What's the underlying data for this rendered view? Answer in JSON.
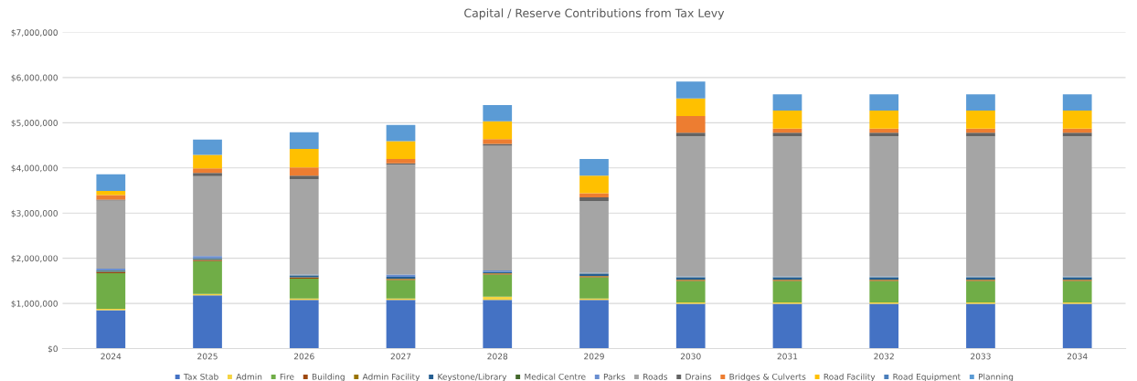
{
  "chart_data": {
    "type": "bar",
    "title": "Capital / Reserve Contributions from Tax Levy",
    "stacked": true,
    "legend": "bottom",
    "grid": "y",
    "categories": [
      "2024",
      "2025",
      "2026",
      "2027",
      "2028",
      "2029",
      "2030",
      "2031",
      "2032",
      "2033",
      "2034"
    ],
    "ylim": [
      0,
      7000000
    ],
    "yticks": [
      {
        "value": 0,
        "label": "$0"
      },
      {
        "value": 1000000,
        "label": "$1,000,000"
      },
      {
        "value": 2000000,
        "label": "$2,000,000"
      },
      {
        "value": 3000000,
        "label": "$3,000,000"
      },
      {
        "value": 4000000,
        "label": "$4,000,000"
      },
      {
        "value": 5000000,
        "label": "$5,000,000"
      },
      {
        "value": 6000000,
        "label": "$6,000,000"
      },
      {
        "value": 7000000,
        "label": "$7,000,000"
      }
    ],
    "series": [
      {
        "name": "Tax Stab",
        "color": "#4472c4",
        "values": [
          850000,
          1180000,
          1080000,
          1080000,
          1080000,
          1080000,
          990000,
          990000,
          990000,
          990000,
          990000
        ]
      },
      {
        "name": "Admin",
        "color": "#f5d442",
        "values": [
          30000,
          30000,
          30000,
          30000,
          70000,
          30000,
          30000,
          30000,
          30000,
          30000,
          30000
        ]
      },
      {
        "name": "Fire",
        "color": "#70ad47",
        "values": [
          790000,
          730000,
          440000,
          410000,
          490000,
          470000,
          480000,
          480000,
          480000,
          480000,
          480000
        ]
      },
      {
        "name": "Building",
        "color": "#9e480e",
        "values": [
          20000,
          20000,
          20000,
          20000,
          20000,
          20000,
          20000,
          20000,
          20000,
          20000,
          20000
        ]
      },
      {
        "name": "Admin Facility",
        "color": "#997300",
        "values": [
          10000,
          10000,
          10000,
          10000,
          10000,
          10000,
          10000,
          10000,
          10000,
          10000,
          10000
        ]
      },
      {
        "name": "Keystone/Library",
        "color": "#255e91",
        "values": [
          20000,
          20000,
          30000,
          40000,
          30000,
          40000,
          40000,
          40000,
          40000,
          40000,
          40000
        ]
      },
      {
        "name": "Medical Centre",
        "color": "#43682b",
        "values": [
          10000,
          10000,
          10000,
          null,
          null,
          10000,
          10000,
          10000,
          10000,
          10000,
          10000
        ]
      },
      {
        "name": "Parks",
        "color": "#698ed0",
        "values": [
          40000,
          50000,
          20000,
          50000,
          30000,
          20000,
          20000,
          20000,
          20000,
          20000,
          20000
        ]
      },
      {
        "name": "Roads",
        "color": "#a5a5a5",
        "values": [
          1510000,
          1770000,
          2110000,
          2430000,
          2760000,
          1580000,
          3100000,
          3100000,
          3100000,
          3100000,
          3100000
        ]
      },
      {
        "name": "Drains",
        "color": "#636363",
        "values": [
          20000,
          70000,
          80000,
          30000,
          40000,
          90000,
          80000,
          80000,
          80000,
          80000,
          80000
        ]
      },
      {
        "name": "Bridges & Culverts",
        "color": "#ed7d31",
        "values": [
          100000,
          100000,
          180000,
          100000,
          110000,
          90000,
          370000,
          90000,
          90000,
          90000,
          90000
        ]
      },
      {
        "name": "Road Facility",
        "color": "#ffc000",
        "values": [
          90000,
          300000,
          410000,
          390000,
          390000,
          390000,
          390000,
          400000,
          400000,
          400000,
          400000
        ]
      },
      {
        "name": "Road Equipment",
        "color": "#4a7ebb",
        "values": [
          0,
          0,
          0,
          0,
          0,
          0,
          0,
          0,
          0,
          0,
          0
        ]
      },
      {
        "name": "Planning",
        "color": "#5b9bd5",
        "values": [
          370000,
          340000,
          370000,
          360000,
          360000,
          370000,
          370000,
          360000,
          360000,
          360000,
          360000
        ]
      }
    ]
  }
}
